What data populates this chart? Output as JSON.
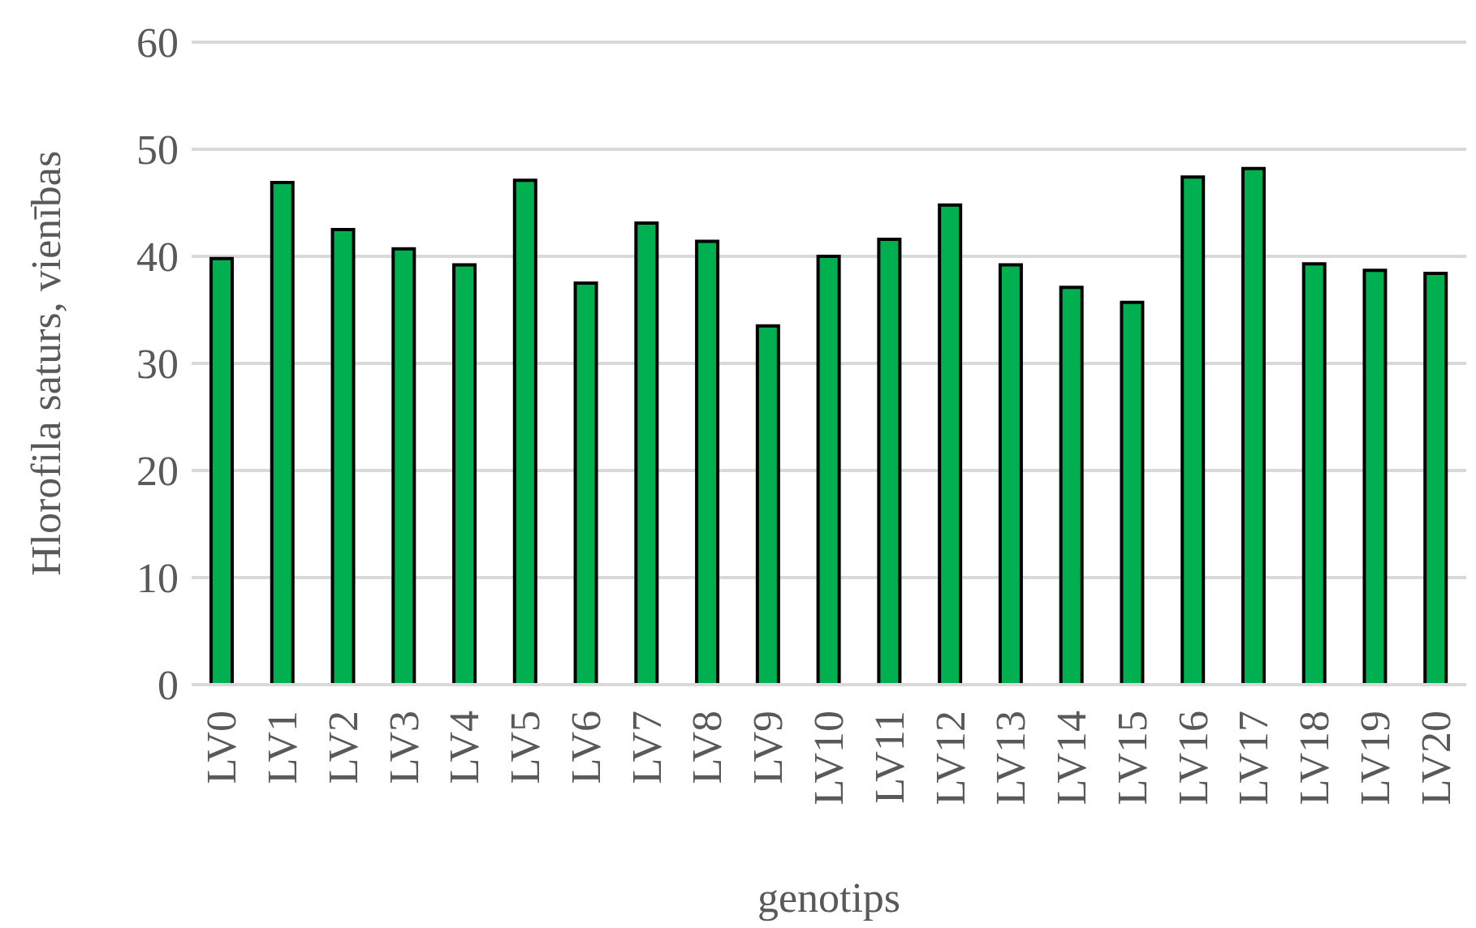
{
  "chart_data": {
    "type": "bar",
    "xlabel": "genotips",
    "ylabel": "Hlorofila saturs, vienības",
    "categories": [
      "LV0",
      "LV1",
      "LV2",
      "LV3",
      "LV4",
      "LV5",
      "LV6",
      "LV7",
      "LV8",
      "LV9",
      "LV10",
      "LV11",
      "LV12",
      "LV13",
      "LV14",
      "LV15",
      "LV16",
      "LV17",
      "LV18",
      "LV19",
      "LV20"
    ],
    "values": [
      39.8,
      46.9,
      42.5,
      40.7,
      39.2,
      47.1,
      37.5,
      43.1,
      41.4,
      33.5,
      40,
      41.6,
      44.8,
      39.2,
      37.1,
      35.7,
      47.4,
      48.2,
      39.3,
      38.7,
      38.4
    ],
    "color": "#00b050",
    "ylim": [
      0,
      60
    ],
    "yticks": [
      0,
      10,
      20,
      30,
      40,
      50,
      60
    ],
    "grid": "y"
  }
}
